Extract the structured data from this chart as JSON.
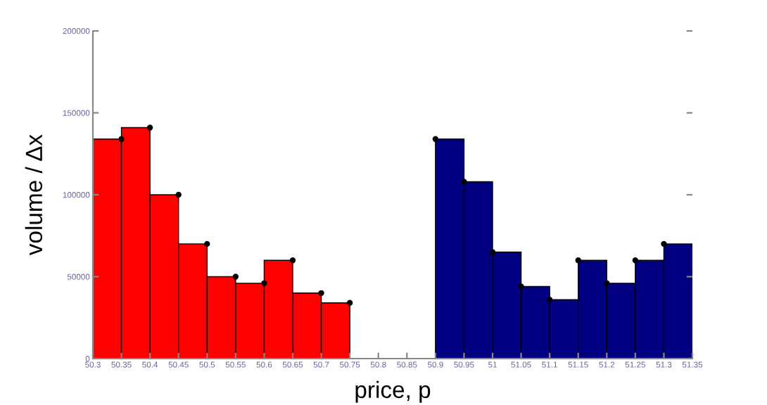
{
  "chart_data": {
    "type": "histogram",
    "xlabel": "price, p",
    "ylabel": "volume / Δx",
    "bins": [
      50.3,
      50.35,
      50.4,
      50.45,
      50.5,
      50.55,
      50.6,
      50.65,
      50.7,
      50.75,
      50.8,
      50.85,
      50.9,
      50.95,
      51,
      51.05,
      51.1,
      51.15,
      51.2,
      51.25,
      51.3,
      51.35
    ],
    "values": [
      134000,
      141000,
      100000,
      70000,
      50000,
      46000,
      60000,
      40000,
      34000,
      null,
      null,
      null,
      134000,
      108000,
      65000,
      44000,
      36000,
      60000,
      46000,
      60000,
      70000
    ],
    "colors": [
      "#ff0000",
      "#ff0000",
      "#ff0000",
      "#ff0000",
      "#ff0000",
      "#ff0000",
      "#ff0000",
      "#ff0000",
      "#ff0000",
      null,
      null,
      null,
      "#000080",
      "#000080",
      "#000080",
      "#000080",
      "#000080",
      "#000080",
      "#000080",
      "#000080",
      "#000080"
    ],
    "series": [
      {
        "type": "scatter",
        "color": "#000000",
        "x": [
          50.35,
          50.4,
          50.45,
          50.5,
          50.55,
          50.6,
          50.65,
          50.7,
          50.75,
          50.9,
          50.95,
          51,
          51.05,
          51.1,
          51.15,
          51.2,
          51.25,
          51.3
        ],
        "values": [
          134000,
          141000,
          100000,
          70000,
          50000,
          46000,
          60000,
          40000,
          34000,
          134000,
          108000,
          65000,
          44000,
          36000,
          60000,
          46000,
          60000,
          70000
        ]
      }
    ],
    "marker": "circle",
    "xlim": [
      50.3,
      51.35
    ],
    "xticks": [
      50.3,
      50.35,
      50.4,
      50.45,
      50.5,
      50.55,
      50.6,
      50.65,
      50.7,
      50.75,
      50.8,
      50.85,
      50.9,
      50.95,
      51,
      51.05,
      51.1,
      51.15,
      51.2,
      51.25,
      51.3,
      51.35
    ],
    "ylim": [
      0,
      200000
    ],
    "yticks": [
      0,
      50000,
      100000,
      150000,
      200000
    ],
    "grid": false
  }
}
